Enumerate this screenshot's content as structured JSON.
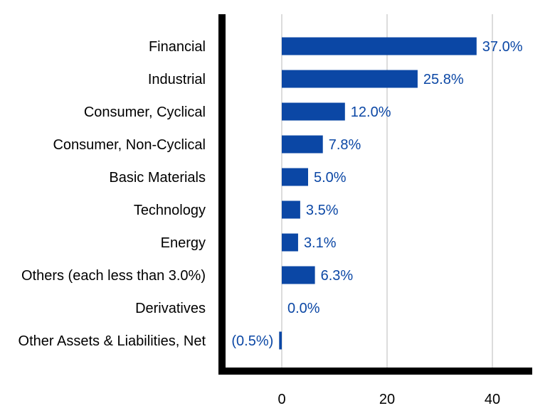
{
  "chart_data": {
    "type": "bar",
    "orientation": "horizontal",
    "categories": [
      "Financial",
      "Industrial",
      "Consumer, Cyclical",
      "Consumer, Non-Cyclical",
      "Basic Materials",
      "Technology",
      "Energy",
      "Others (each less than 3.0%)",
      "Derivatives",
      "Other Assets & Liabilities, Net"
    ],
    "values": [
      37.0,
      25.8,
      12.0,
      7.8,
      5.0,
      3.5,
      3.1,
      6.3,
      0.0,
      -0.5
    ],
    "value_labels": [
      "37.0%",
      "25.8%",
      "12.0%",
      "7.8%",
      "5.0%",
      "3.5%",
      "3.1%",
      "6.3%",
      "0.0%",
      "(0.5%)"
    ],
    "xlim": [
      -12,
      47
    ],
    "xticks": [
      0,
      20,
      40
    ],
    "xtick_labels": [
      "0",
      "20",
      "40"
    ],
    "grid": true,
    "title": "",
    "xlabel": "",
    "ylabel": "",
    "colors": {
      "bar": "#0b47a5",
      "label": "#0b47a5",
      "axis": "#000000",
      "grid": "#d0d0d0"
    }
  }
}
